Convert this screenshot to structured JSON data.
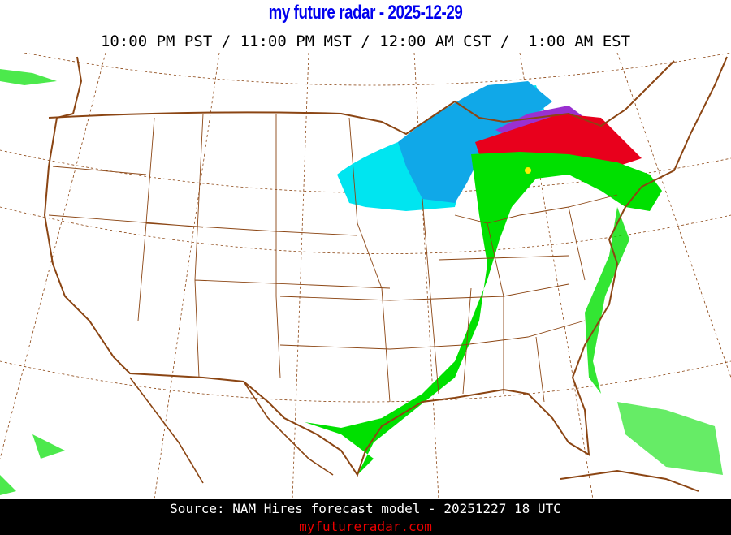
{
  "header": {
    "title": "my future radar - 2025-12-29",
    "time_line": "10:00 PM PST / 11:00 PM MST / 12:00 AM CST /  1:00 AM EST"
  },
  "map": {
    "region": "Continental United States",
    "layers": [
      "precipitation forecast",
      "state boundaries",
      "lat/lon grid"
    ],
    "colors": {
      "border": "#8b4513",
      "grid": "#8b4513",
      "rain_light": "#00e000",
      "rain_heavy": "#ffee00",
      "snow_light": "#00e5f0",
      "snow_heavy": "#10a8e8",
      "mix": "#9a30d0",
      "freezing": "#e8001c"
    }
  },
  "footer": {
    "source": "Source: NAM Hires forecast model - 20251227 18 UTC",
    "site": "myfutureradar.com"
  }
}
